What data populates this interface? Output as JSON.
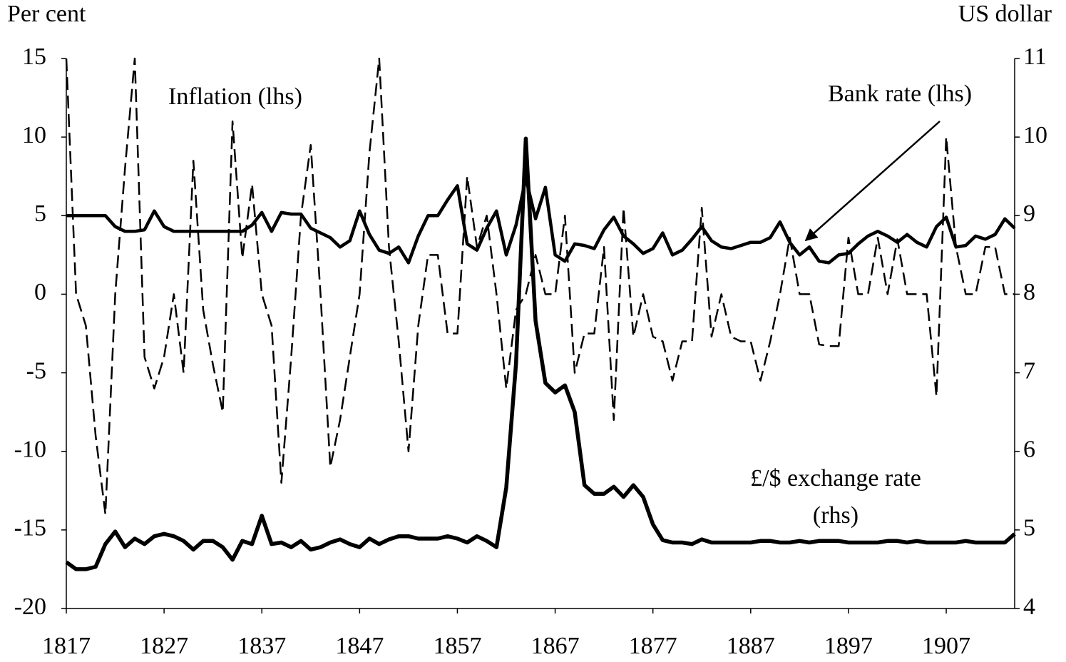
{
  "chart_data": {
    "type": "line",
    "y_label": "Per cent",
    "y2_label": "US dollar",
    "x": [
      1817,
      1818,
      1819,
      1820,
      1821,
      1822,
      1823,
      1824,
      1825,
      1826,
      1827,
      1828,
      1829,
      1830,
      1831,
      1832,
      1833,
      1834,
      1835,
      1836,
      1837,
      1838,
      1839,
      1840,
      1841,
      1842,
      1843,
      1844,
      1845,
      1846,
      1847,
      1848,
      1849,
      1850,
      1851,
      1852,
      1853,
      1854,
      1855,
      1856,
      1857,
      1858,
      1859,
      1860,
      1861,
      1862,
      1863,
      1864,
      1865,
      1866,
      1867,
      1868,
      1869,
      1870,
      1871,
      1872,
      1873,
      1874,
      1875,
      1876,
      1877,
      1878,
      1879,
      1880,
      1881,
      1882,
      1883,
      1884,
      1885,
      1886,
      1887,
      1888,
      1889,
      1890,
      1891,
      1892,
      1893,
      1894,
      1895,
      1896,
      1897,
      1898,
      1899,
      1900,
      1901,
      1902,
      1903,
      1904,
      1905,
      1906,
      1907,
      1908,
      1909,
      1910,
      1911,
      1912,
      1913,
      1914
    ],
    "xlim": [
      1817,
      1914
    ],
    "xticks": [
      1817,
      1827,
      1837,
      1847,
      1857,
      1867,
      1877,
      1887,
      1897,
      1907
    ],
    "ylim": [
      -20,
      15
    ],
    "yticks": [
      -20,
      -15,
      -10,
      -5,
      0,
      5,
      10,
      15
    ],
    "y2lim": [
      4,
      11
    ],
    "y2ticks": [
      4,
      5,
      6,
      7,
      8,
      9,
      10,
      11
    ],
    "series": [
      {
        "name": "Inflation (lhs)",
        "color": "#000000",
        "style": "dashed",
        "values": [
          15,
          0,
          -2,
          -9,
          -14,
          0,
          8,
          15,
          -4,
          -6,
          -4,
          0,
          -5,
          8.5,
          -1,
          -4.5,
          -7.5,
          11,
          2.3,
          7,
          0,
          -2,
          -12,
          -4,
          5,
          9.5,
          0,
          -11,
          -8,
          -4,
          0,
          9,
          15,
          3,
          -3,
          -10,
          -2,
          2.5,
          2.5,
          -2.5,
          -2.5,
          7.5,
          3,
          5,
          0,
          -6,
          -1,
          0,
          2.5,
          0,
          0,
          5,
          -5,
          -2.5,
          -2.5,
          3,
          -8,
          5.5,
          -2.7,
          0,
          -2.7,
          -3,
          -5.5,
          -3,
          -3,
          5.5,
          -2.7,
          0,
          -2.7,
          -3,
          -3,
          -5.5,
          -3,
          0,
          3.6,
          0,
          0,
          -3.2,
          -3.3,
          -3.3,
          3.6,
          0,
          0,
          3.6,
          0,
          3.5,
          0,
          0,
          0,
          -6.5,
          10,
          3,
          0,
          0,
          3,
          3,
          0,
          0
        ]
      },
      {
        "name": "Bank rate (lhs)",
        "color": "#000000",
        "style": "solid",
        "values": [
          5,
          5,
          5,
          5,
          5,
          4.3,
          4,
          4,
          4.1,
          5.3,
          4.3,
          4,
          4,
          4,
          4,
          4,
          4,
          4,
          4,
          4.4,
          5.2,
          4,
          5.2,
          5.1,
          5.1,
          4.2,
          3.9,
          3.6,
          3,
          3.4,
          5.3,
          3.8,
          2.8,
          2.6,
          3,
          2,
          3.7,
          5,
          5,
          6,
          6.9,
          3.2,
          2.8,
          4.2,
          5.3,
          2.5,
          4.4,
          7.4,
          4.8,
          6.8,
          2.5,
          2.1,
          3.2,
          3.1,
          2.9,
          4.1,
          4.9,
          3.7,
          3.2,
          2.6,
          2.9,
          3.9,
          2.5,
          2.8,
          3.5,
          4.3,
          3.4,
          3,
          2.9,
          3.1,
          3.3,
          3.3,
          3.6,
          4.6,
          3.3,
          2.5,
          3,
          2.1,
          2,
          2.5,
          2.6,
          3.2,
          3.7,
          4,
          3.7,
          3.3,
          3.8,
          3.3,
          3,
          4.3,
          4.9,
          3,
          3.1,
          3.7,
          3.5,
          3.8,
          4.8,
          4.2
        ]
      },
      {
        "name": "£/$ exchange rate (rhs)",
        "color": "#000000",
        "style": "thick",
        "axis": "y2",
        "values": [
          4.59,
          4.5,
          4.5,
          4.53,
          4.82,
          4.98,
          4.78,
          4.89,
          4.82,
          4.92,
          4.95,
          4.92,
          4.86,
          4.75,
          4.86,
          4.86,
          4.78,
          4.62,
          4.86,
          4.82,
          5.18,
          4.82,
          4.84,
          4.78,
          4.86,
          4.75,
          4.78,
          4.84,
          4.88,
          4.82,
          4.78,
          4.89,
          4.82,
          4.88,
          4.92,
          4.92,
          4.89,
          4.89,
          4.89,
          4.92,
          4.89,
          4.84,
          4.92,
          4.86,
          4.78,
          5.54,
          7.12,
          9.98,
          7.66,
          6.87,
          6.75,
          6.84,
          6.5,
          5.57,
          5.46,
          5.46,
          5.55,
          5.42,
          5.57,
          5.42,
          5.07,
          4.87,
          4.84,
          4.84,
          4.82,
          4.88,
          4.84,
          4.84,
          4.84,
          4.84,
          4.84,
          4.86,
          4.86,
          4.84,
          4.84,
          4.86,
          4.84,
          4.86,
          4.86,
          4.86,
          4.84,
          4.84,
          4.84,
          4.84,
          4.86,
          4.86,
          4.84,
          4.86,
          4.84,
          4.84,
          4.84,
          4.84,
          4.86,
          4.84,
          4.84,
          4.84,
          4.84,
          4.95
        ]
      }
    ]
  }
}
